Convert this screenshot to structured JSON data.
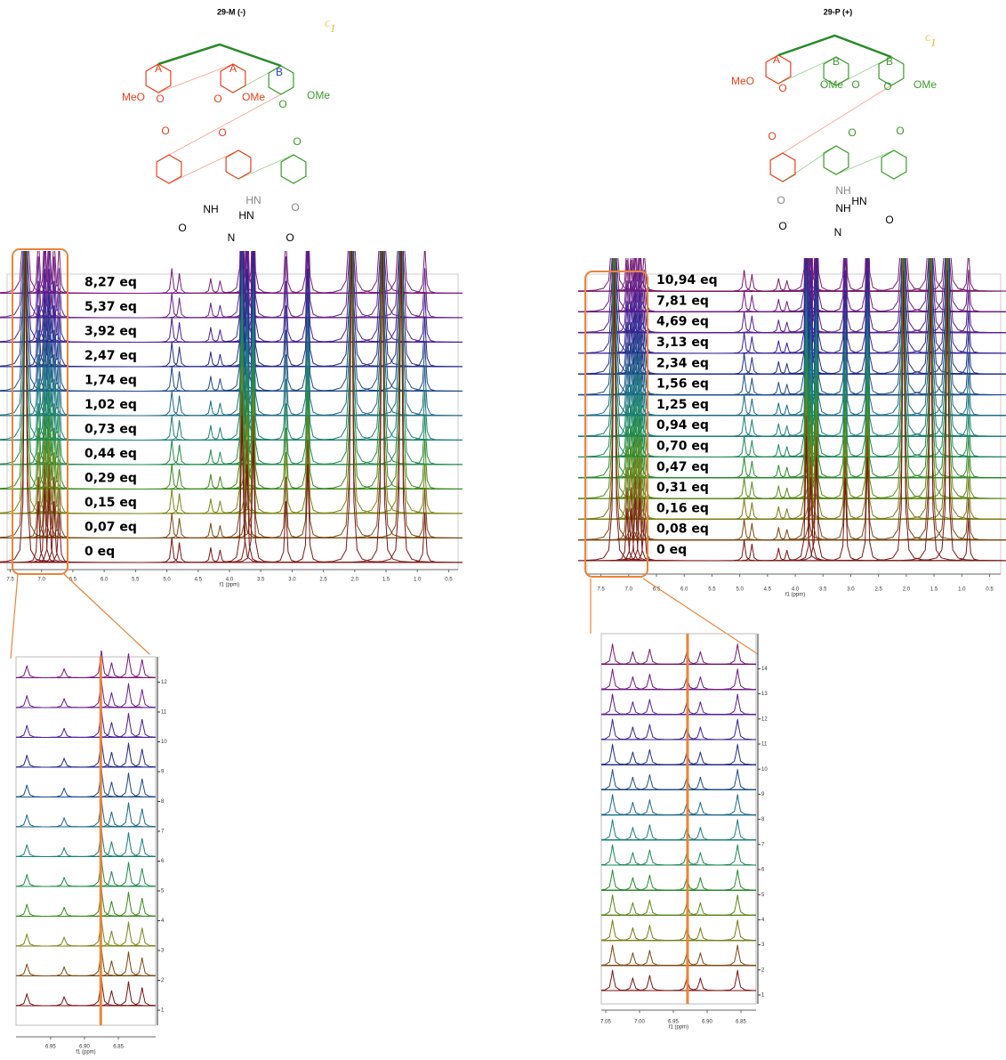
{
  "panels": [
    {
      "title": "29-M (-)",
      "symmetry": {
        "letter": "C",
        "subscript": "1"
      },
      "structure_labels": [
        "A",
        "A",
        "B",
        "MeO",
        "O",
        "O",
        "OMe",
        "O",
        "OMe",
        "O",
        "O",
        "O",
        "NH",
        "HN",
        "HN",
        "O",
        "O",
        "N",
        "O"
      ],
      "spectrum": {
        "xlim": [
          7.55,
          0.35
        ],
        "xticks": [
          7.5,
          {
            "value": 7,
            "label": "7.0"
          },
          6.5,
          {
            "value": 6,
            "label": "6.0"
          },
          5.5,
          {
            "value": 5,
            "label": "5.0"
          },
          4.5,
          {
            "value": 4,
            "label": "4.0"
          },
          3.5,
          {
            "value": 3,
            "label": "3.0"
          },
          2.5,
          {
            "value": 2,
            "label": "2.0"
          },
          1.5,
          {
            "value": 1,
            "label": "1.0"
          },
          0.5
        ],
        "xlabel": "f1 (ppm)",
        "traces": [
          {
            "label": "8,27 eq",
            "color": "#7a1a78"
          },
          {
            "label": "5,37 eq",
            "color": "#66208a"
          },
          {
            "label": "3,92 eq",
            "color": "#4a1f96"
          },
          {
            "label": "2,47 eq",
            "color": "#23288a"
          },
          {
            "label": "1,74 eq",
            "color": "#1f4a88"
          },
          {
            "label": "1,02 eq",
            "color": "#1c6a86"
          },
          {
            "label": "0,73 eq",
            "color": "#1a8078"
          },
          {
            "label": "0,44 eq",
            "color": "#1f8a4c"
          },
          {
            "label": "0,29 eq",
            "color": "#3a8a1e"
          },
          {
            "label": "0,15 eq",
            "color": "#7a8414"
          },
          {
            "label": "0,07 eq",
            "color": "#7a4a12"
          },
          {
            "label": "0 eq",
            "color": "#7a1414"
          }
        ],
        "peaks": {
          "ppm": [
            7.26,
            7.05,
            6.95,
            6.88,
            6.8,
            6.72,
            4.92,
            4.8,
            4.3,
            4.15,
            3.8,
            3.72,
            3.62,
            3.1,
            2.75,
            2.05,
            1.56,
            1.26,
            0.88
          ],
          "intensity": [
            14,
            2.5,
            3,
            3,
            2.5,
            2,
            1,
            0.8,
            0.6,
            0.5,
            6,
            4,
            5,
            2.5,
            4,
            14,
            14,
            14,
            2
          ]
        }
      },
      "zoom": {
        "xlim": [
          7.001,
          6.795
        ],
        "xticks": [
          6.95,
          {
            "value": 6.9,
            "label": "6.90"
          },
          6.85
        ],
        "xlabel": "f1 (ppm)",
        "yticks": [
          1,
          2,
          3,
          4,
          5,
          6,
          7,
          8,
          9,
          10,
          11,
          12
        ],
        "marker_ppm": 6.876,
        "peaks": {
          "ppm": [
            6.985,
            6.93,
            6.875,
            6.86,
            6.835,
            6.815
          ],
          "intensity": [
            0.4,
            0.3,
            0.9,
            0.5,
            0.8,
            0.6
          ]
        }
      }
    },
    {
      "title": "29-P (+)",
      "symmetry": {
        "letter": "C",
        "subscript": "1"
      },
      "structure_labels": [
        "A",
        "B",
        "B",
        "MeO",
        "O",
        "OMe",
        "O",
        "O",
        "OMe",
        "O",
        "O",
        "O",
        "NH",
        "NH",
        "HN",
        "O",
        "O",
        "N",
        "O"
      ],
      "spectrum": {
        "xlim": [
          7.75,
          0.3
        ],
        "xticks": [
          7.5,
          {
            "value": 7,
            "label": "7.0"
          },
          6.5,
          {
            "value": 6,
            "label": "6.0"
          },
          5.5,
          {
            "value": 5,
            "label": "5.0"
          },
          4.5,
          {
            "value": 4,
            "label": "4.0"
          },
          3.5,
          {
            "value": 3,
            "label": "3.0"
          },
          2.5,
          {
            "value": 2,
            "label": "2.0"
          },
          1.5,
          {
            "value": 1,
            "label": "1.0"
          },
          0.5
        ],
        "xlabel": "f1 (ppm)",
        "traces": [
          {
            "label": "10,94 eq",
            "color": "#7a1a6a"
          },
          {
            "label": "7,81 eq",
            "color": "#6c1d80"
          },
          {
            "label": "4,69 eq",
            "color": "#58208e"
          },
          {
            "label": "3,13 eq",
            "color": "#3a2296"
          },
          {
            "label": "2,34 eq",
            "color": "#23308a"
          },
          {
            "label": "1,56 eq",
            "color": "#1f4e88"
          },
          {
            "label": "1,25 eq",
            "color": "#1c6a86"
          },
          {
            "label": "0,94 eq",
            "color": "#1a7e7a"
          },
          {
            "label": "0,70 eq",
            "color": "#1c8a58"
          },
          {
            "label": "0,47 eq",
            "color": "#2a8a2e"
          },
          {
            "label": "0,31 eq",
            "color": "#5a8a1a"
          },
          {
            "label": "0,16 eq",
            "color": "#7a7a14"
          },
          {
            "label": "0,08 eq",
            "color": "#7a4a12"
          },
          {
            "label": "0 eq",
            "color": "#7a1414"
          }
        ],
        "peaks": {
          "ppm": [
            7.26,
            7.03,
            6.95,
            6.88,
            6.8,
            6.72,
            4.92,
            4.78,
            4.3,
            4.15,
            3.8,
            3.72,
            3.62,
            3.1,
            2.7,
            2.05,
            1.56,
            1.26,
            0.88
          ],
          "intensity": [
            14,
            2.5,
            2.5,
            3,
            3,
            2,
            1,
            0.8,
            0.6,
            0.5,
            6,
            4,
            5,
            4,
            5,
            14,
            14,
            14,
            2
          ]
        }
      },
      "zoom": {
        "xlim": [
          7.0566,
          6.8276
        ],
        "xticks": [
          7.05,
          {
            "value": 7,
            "label": "7.00"
          },
          6.95,
          {
            "value": 6.9,
            "label": "6.90"
          },
          6.85
        ],
        "xlabel": "f1 (ppm)",
        "yticks": [
          1,
          2,
          3,
          4,
          5,
          6,
          7,
          8,
          9,
          10,
          11,
          12,
          13,
          14
        ],
        "marker_ppm": 6.929,
        "peaks": {
          "ppm": [
            7.04,
            7.01,
            6.985,
            6.93,
            6.91,
            6.855
          ],
          "intensity": [
            0.8,
            0.5,
            0.6,
            0.5,
            0.5,
            0.8
          ]
        }
      }
    }
  ]
}
